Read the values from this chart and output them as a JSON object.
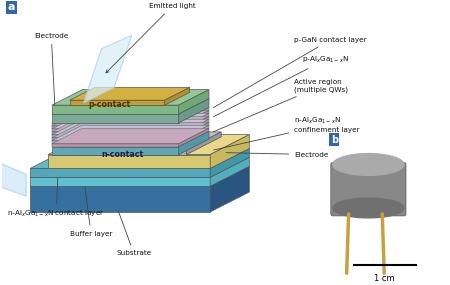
{
  "background_color": "#ffffff",
  "fig_width": 4.5,
  "fig_height": 2.85,
  "dpi": 100,
  "panel_a_label": "a",
  "panel_b_label": "b",
  "scale_bar_label": "1 cm",
  "colors": {
    "outline_color": "#555555"
  }
}
